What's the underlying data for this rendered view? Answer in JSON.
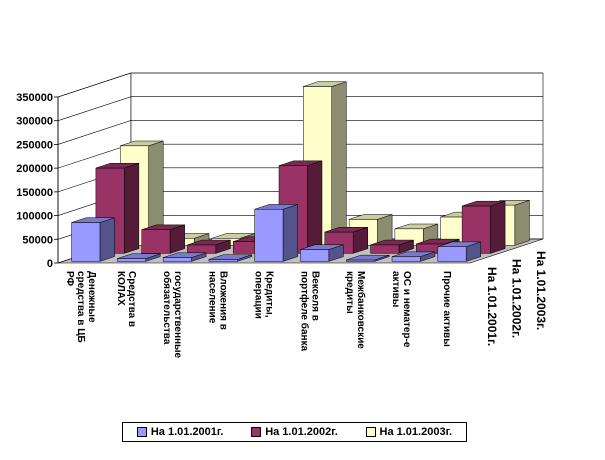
{
  "chart_data": {
    "type": "bar",
    "style": "3d-clustered",
    "title": "",
    "categories": [
      "Денежные средства в ЦБ РФ",
      "Средства в КОЛАХ",
      "государственные обязательства",
      "Вложения в население",
      "Кредиты, операции",
      "Векселя в портфеле банка",
      "Межбанковские кредиты",
      "ОС и нематер-е активы",
      "Прочие активы"
    ],
    "series": [
      {
        "name": "На 1.01.2001г.",
        "color": "#9999ff",
        "values": [
          82000,
          6000,
          8000,
          4000,
          110000,
          25000,
          3000,
          10000,
          31000
        ]
      },
      {
        "name": "На 1.01.2002г.",
        "color": "#993366",
        "values": [
          180000,
          50000,
          18000,
          25000,
          185000,
          45000,
          18000,
          20000,
          100000
        ]
      },
      {
        "name": "На 1.01.2003г.",
        "color": "#ffffcc",
        "values": [
          210000,
          15000,
          15000,
          18000,
          335000,
          55000,
          35000,
          60000,
          85000
        ]
      }
    ],
    "depth_labels": [
      "На 1.01.2001г.",
      "На 1.01.2002г.",
      "На 1.01.2003г."
    ],
    "ylim": [
      0,
      350000
    ],
    "yticks": [
      "0",
      "50000",
      "100000",
      "150000",
      "200000",
      "250000",
      "300000",
      "350000"
    ],
    "grid": true,
    "legend_position": "bottom"
  }
}
